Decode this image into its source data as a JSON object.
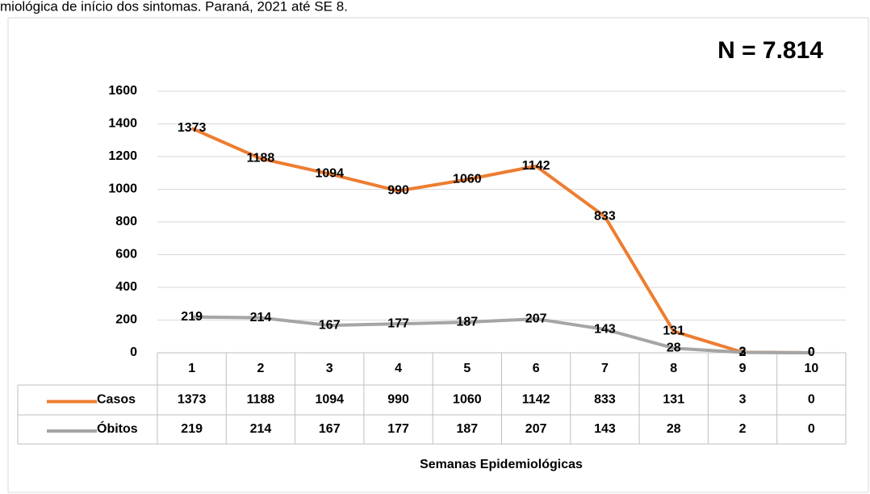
{
  "chart_data": {
    "type": "line",
    "title": "miológica de início dos sintomas. Paraná, 2021 até SE 8.",
    "annotation": "N = 7.814",
    "x_label": "Semanas Epidemiológicas",
    "categories": [
      "1",
      "2",
      "3",
      "4",
      "5",
      "6",
      "7",
      "8",
      "9",
      "10"
    ],
    "series": [
      {
        "name": "Casos",
        "color": "#ed7d31",
        "values": [
          1373,
          1188,
          1094,
          990,
          1060,
          1142,
          833,
          131,
          3,
          0
        ]
      },
      {
        "name": "Óbitos",
        "color": "#a5a5a5",
        "values": [
          219,
          214,
          167,
          177,
          187,
          207,
          143,
          28,
          2,
          0
        ]
      }
    ],
    "ylim": [
      0,
      1600
    ],
    "yticks": [
      0,
      200,
      400,
      600,
      800,
      1000,
      1200,
      1400,
      1600
    ],
    "grid": true
  }
}
